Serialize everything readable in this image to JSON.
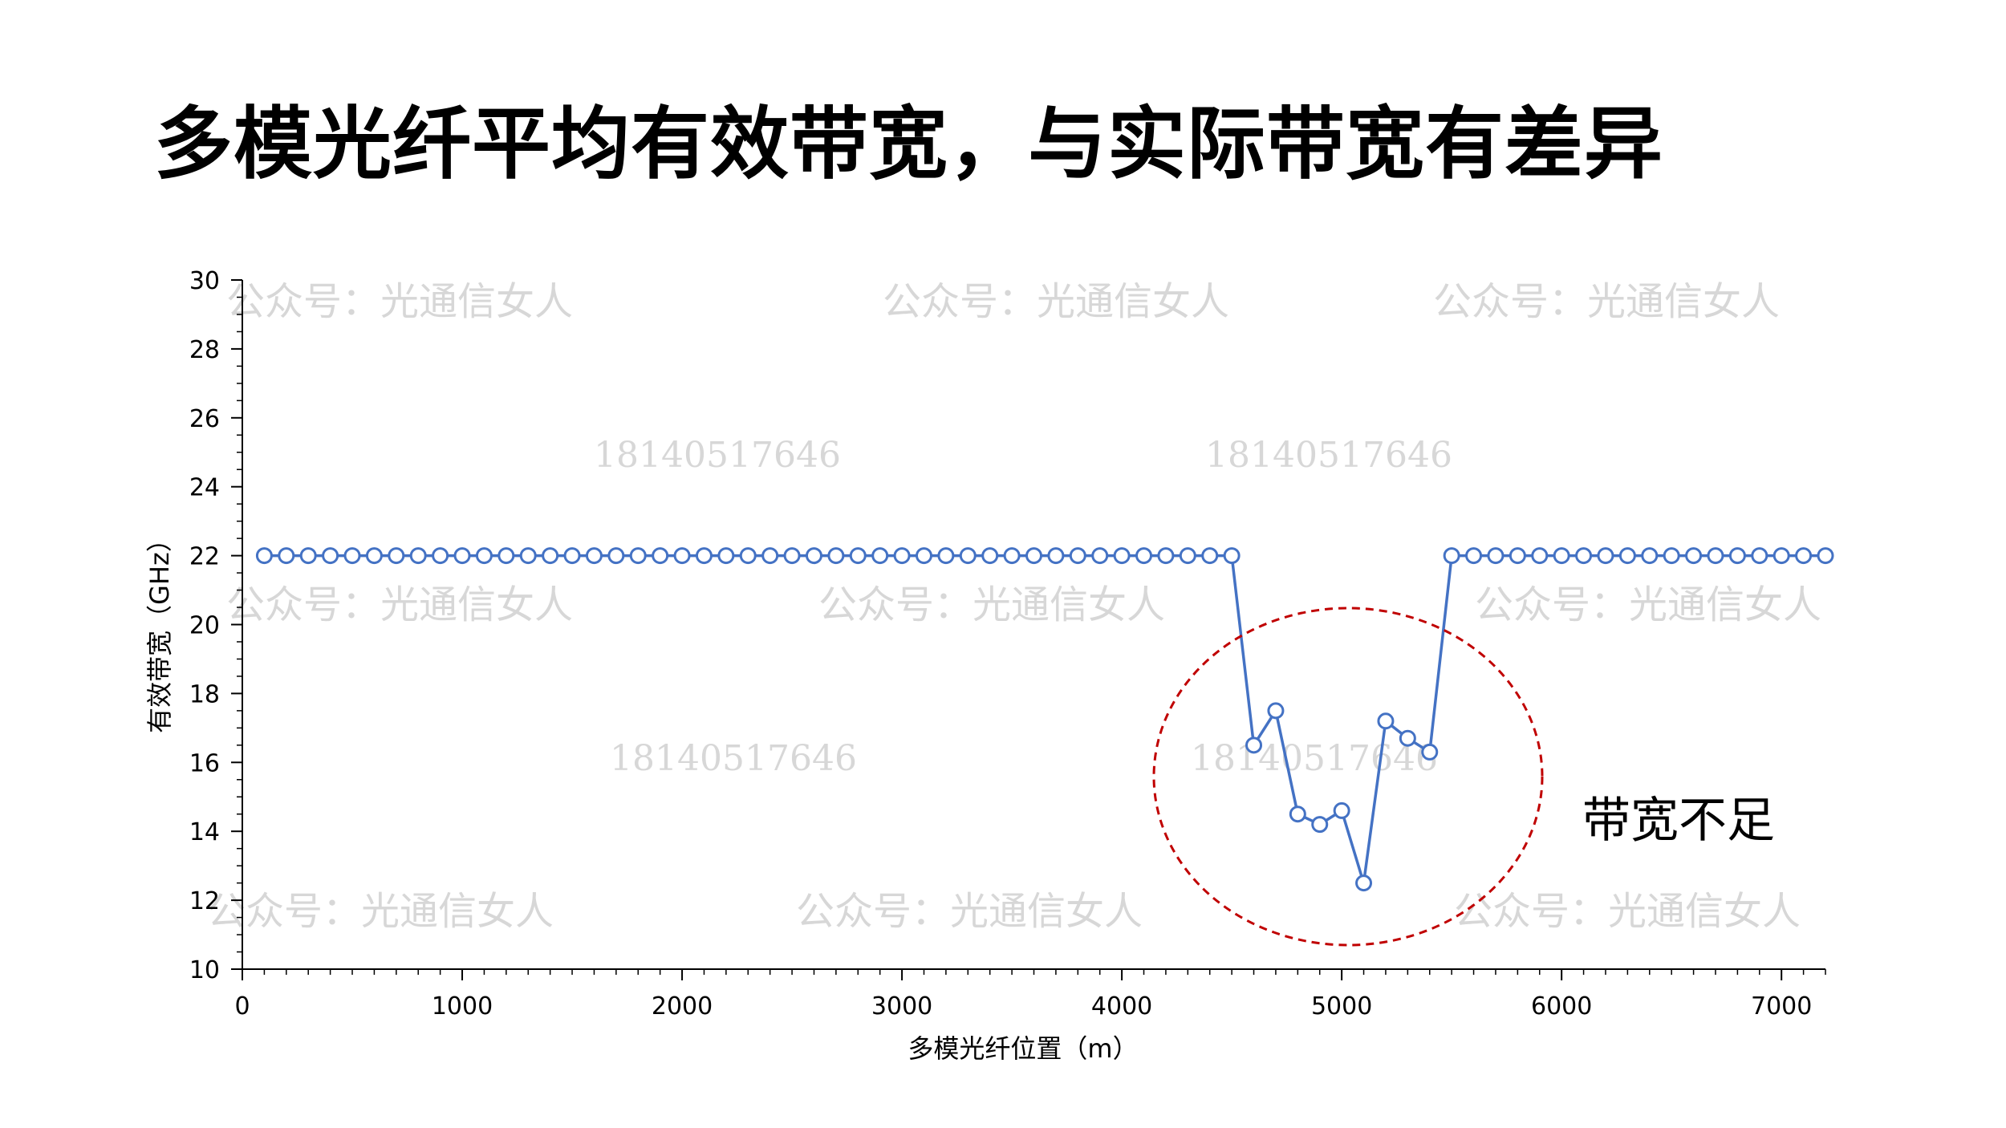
{
  "title": "多模光纤平均有效带宽，与实际带宽有差异",
  "watermarks": {
    "account": "公众号：光通信女人",
    "phone": "18140517646"
  },
  "chart_data": {
    "type": "line",
    "xlabel": "多模光纤位置（m）",
    "ylabel": "有效带宽（GHz）",
    "xlim": [
      0,
      7200
    ],
    "ylim": [
      10,
      30
    ],
    "xticks": [
      0,
      1000,
      2000,
      3000,
      4000,
      5000,
      6000,
      7000
    ],
    "yticks": [
      10,
      12,
      14,
      16,
      18,
      20,
      22,
      24,
      26,
      28,
      30
    ],
    "series": [
      {
        "color": "#4472c4",
        "x": [
          100,
          200,
          300,
          400,
          500,
          600,
          700,
          800,
          900,
          1000,
          1100,
          1200,
          1300,
          1400,
          1500,
          1600,
          1700,
          1800,
          1900,
          2000,
          2100,
          2200,
          2300,
          2400,
          2500,
          2600,
          2700,
          2800,
          2900,
          3000,
          3100,
          3200,
          3300,
          3400,
          3500,
          3600,
          3700,
          3800,
          3900,
          4000,
          4100,
          4200,
          4300,
          4400,
          4500,
          4600,
          4700,
          4800,
          4900,
          5000,
          5100,
          5200,
          5300,
          5400,
          5500,
          5600,
          5700,
          5800,
          5900,
          6000,
          6100,
          6200,
          6300,
          6400,
          6500,
          6600,
          6700,
          6800,
          6900,
          7000,
          7100,
          7200
        ],
        "y": [
          22,
          22,
          22,
          22,
          22,
          22,
          22,
          22,
          22,
          22,
          22,
          22,
          22,
          22,
          22,
          22,
          22,
          22,
          22,
          22,
          22,
          22,
          22,
          22,
          22,
          22,
          22,
          22,
          22,
          22,
          22,
          22,
          22,
          22,
          22,
          22,
          22,
          22,
          22,
          22,
          22,
          22,
          22,
          22,
          22,
          16.5,
          17.5,
          14.5,
          14.2,
          14.6,
          12.5,
          17.2,
          16.7,
          16.3,
          22,
          22,
          22,
          22,
          22,
          22,
          22,
          22,
          22,
          22,
          22,
          22,
          22,
          22,
          22,
          22,
          22,
          22
        ]
      }
    ],
    "annotation": {
      "text": "带宽不足",
      "circle_color": "#c00000"
    },
    "legend": "none",
    "grid": false
  }
}
